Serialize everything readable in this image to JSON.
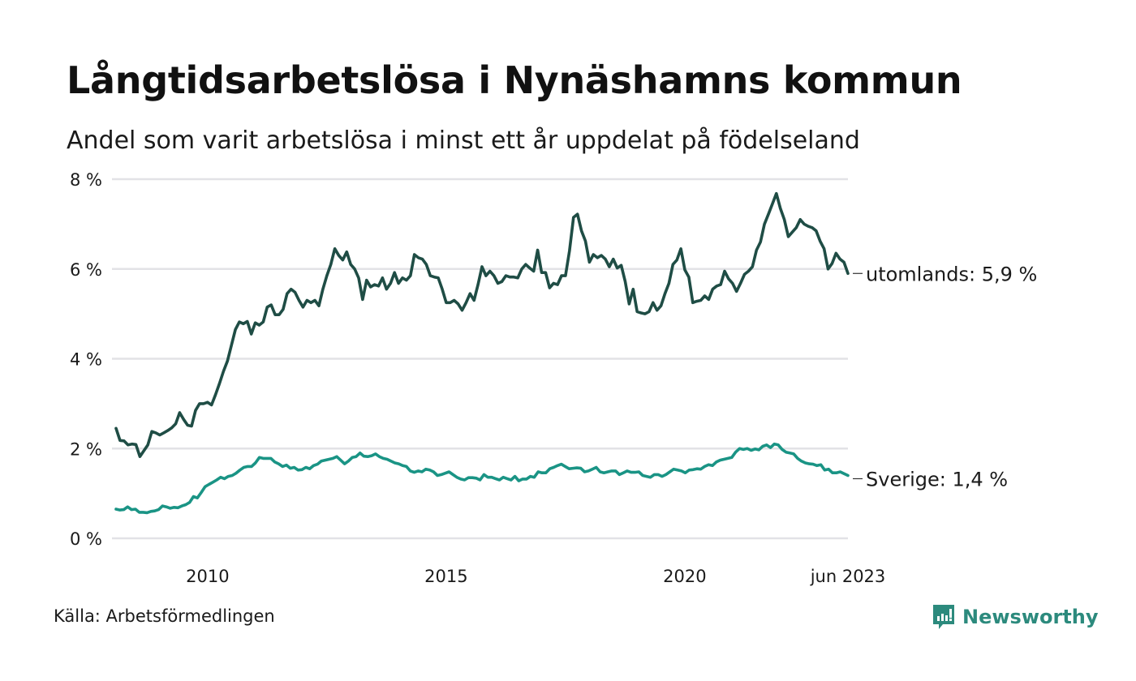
{
  "header": {
    "title": "Långtidsarbetslösa i Nynäshamns kommun",
    "subtitle": "Andel som varit arbetslösa i minst ett år uppdelat på födelseland"
  },
  "footer": {
    "source": "Källa: Arbetsförmedlingen",
    "brand": "Newsworthy",
    "brand_icon": "newsworthy-logo-icon"
  },
  "colors": {
    "utomlands": "#1f4d45",
    "sverige": "#1a9485",
    "grid": "#e2e2e6",
    "brand": "#2c8a7d"
  },
  "chart_data": {
    "type": "line",
    "title": "Långtidsarbetslösa i Nynäshamns kommun",
    "subtitle": "Andel som varit arbetslösa i minst ett år uppdelat på födelseland",
    "xlabel": "",
    "ylabel": "",
    "x_start": "2008-02",
    "x_end": "2023-06",
    "x_frequency": "monthly",
    "xlim": [
      2008.08,
      2023.42
    ],
    "ylim": [
      0,
      8
    ],
    "yticks": [
      0,
      2,
      4,
      6,
      8
    ],
    "ytick_labels": [
      "0 %",
      "2 %",
      "4 %",
      "6 %",
      "8 %"
    ],
    "xticks": [
      2010,
      2015,
      2020,
      2023.42
    ],
    "xtick_labels": [
      "2010",
      "2015",
      "2020",
      "jun 2023"
    ],
    "grid": true,
    "legend": "direct-labels-right",
    "series": [
      {
        "name": "utomlands",
        "label": "utomlands: 5,9 %",
        "last_value": 5.9,
        "values": [
          2.45,
          2.18,
          2.17,
          2.08,
          2.1,
          2.09,
          1.82,
          1.95,
          2.08,
          2.38,
          2.35,
          2.3,
          2.35,
          2.4,
          2.46,
          2.55,
          2.8,
          2.65,
          2.52,
          2.5,
          2.85,
          3.0,
          3.0,
          3.03,
          2.97,
          3.2,
          3.45,
          3.72,
          3.95,
          4.3,
          4.65,
          4.82,
          4.78,
          4.83,
          4.55,
          4.8,
          4.75,
          4.82,
          5.15,
          5.2,
          4.98,
          4.98,
          5.1,
          5.45,
          5.55,
          5.48,
          5.3,
          5.15,
          5.3,
          5.25,
          5.3,
          5.18,
          5.55,
          5.85,
          6.1,
          6.45,
          6.3,
          6.2,
          6.38,
          6.1,
          6.0,
          5.8,
          5.32,
          5.75,
          5.6,
          5.65,
          5.62,
          5.8,
          5.55,
          5.68,
          5.92,
          5.68,
          5.8,
          5.75,
          5.85,
          6.32,
          6.25,
          6.22,
          6.1,
          5.85,
          5.82,
          5.8,
          5.55,
          5.25,
          5.25,
          5.3,
          5.22,
          5.08,
          5.25,
          5.45,
          5.3,
          5.65,
          6.05,
          5.85,
          5.95,
          5.85,
          5.68,
          5.72,
          5.85,
          5.82,
          5.82,
          5.8,
          6.0,
          6.1,
          6.02,
          5.95,
          6.42,
          5.92,
          5.92,
          5.58,
          5.68,
          5.65,
          5.85,
          5.85,
          6.4,
          7.15,
          7.22,
          6.85,
          6.62,
          6.15,
          6.32,
          6.25,
          6.3,
          6.22,
          6.05,
          6.22,
          6.02,
          6.08,
          5.72,
          5.22,
          5.55,
          5.05,
          5.02,
          5.0,
          5.05,
          5.25,
          5.08,
          5.18,
          5.45,
          5.68,
          6.1,
          6.2,
          6.45,
          5.98,
          5.82,
          5.25,
          5.28,
          5.3,
          5.4,
          5.32,
          5.55,
          5.62,
          5.65,
          5.95,
          5.78,
          5.68,
          5.5,
          5.68,
          5.88,
          5.95,
          6.05,
          6.42,
          6.6,
          7.0,
          7.22,
          7.45,
          7.68,
          7.35,
          7.1,
          6.72,
          6.82,
          6.92,
          7.1,
          7.0,
          6.95,
          6.92,
          6.85,
          6.62,
          6.45,
          6.0,
          6.12,
          6.35,
          6.22,
          6.15,
          5.9
        ]
      },
      {
        "name": "Sverige",
        "label": "Sverige: 1,4 %",
        "last_value": 1.4,
        "values": [
          0.65,
          0.63,
          0.64,
          0.7,
          0.64,
          0.65,
          0.58,
          0.58,
          0.57,
          0.6,
          0.61,
          0.64,
          0.72,
          0.7,
          0.67,
          0.69,
          0.68,
          0.72,
          0.75,
          0.8,
          0.93,
          0.9,
          1.02,
          1.15,
          1.2,
          1.25,
          1.3,
          1.36,
          1.33,
          1.38,
          1.4,
          1.45,
          1.52,
          1.58,
          1.6,
          1.6,
          1.68,
          1.8,
          1.78,
          1.78,
          1.78,
          1.7,
          1.66,
          1.6,
          1.63,
          1.56,
          1.58,
          1.52,
          1.53,
          1.58,
          1.55,
          1.62,
          1.65,
          1.72,
          1.74,
          1.76,
          1.78,
          1.82,
          1.74,
          1.66,
          1.72,
          1.8,
          1.82,
          1.9,
          1.83,
          1.82,
          1.84,
          1.88,
          1.82,
          1.78,
          1.76,
          1.72,
          1.68,
          1.66,
          1.62,
          1.6,
          1.5,
          1.47,
          1.5,
          1.48,
          1.54,
          1.52,
          1.48,
          1.4,
          1.42,
          1.45,
          1.48,
          1.42,
          1.36,
          1.32,
          1.3,
          1.35,
          1.35,
          1.34,
          1.3,
          1.42,
          1.36,
          1.36,
          1.33,
          1.3,
          1.36,
          1.33,
          1.3,
          1.38,
          1.28,
          1.32,
          1.32,
          1.38,
          1.36,
          1.48,
          1.46,
          1.46,
          1.55,
          1.58,
          1.62,
          1.65,
          1.6,
          1.55,
          1.56,
          1.57,
          1.56,
          1.48,
          1.5,
          1.54,
          1.58,
          1.48,
          1.46,
          1.48,
          1.5,
          1.5,
          1.42,
          1.46,
          1.5,
          1.47,
          1.47,
          1.48,
          1.4,
          1.38,
          1.36,
          1.42,
          1.42,
          1.38,
          1.42,
          1.48,
          1.54,
          1.52,
          1.5,
          1.46,
          1.52,
          1.53,
          1.55,
          1.54,
          1.6,
          1.64,
          1.62,
          1.7,
          1.74,
          1.76,
          1.78,
          1.8,
          1.92,
          2.0,
          1.98,
          2.0,
          1.96,
          1.99,
          1.97,
          2.05,
          2.08,
          2.02,
          2.1,
          2.08,
          1.98,
          1.92,
          1.9,
          1.88,
          1.78,
          1.72,
          1.68,
          1.66,
          1.65,
          1.62,
          1.64,
          1.52,
          1.54,
          1.46,
          1.46,
          1.48,
          1.44,
          1.4
        ]
      }
    ]
  }
}
